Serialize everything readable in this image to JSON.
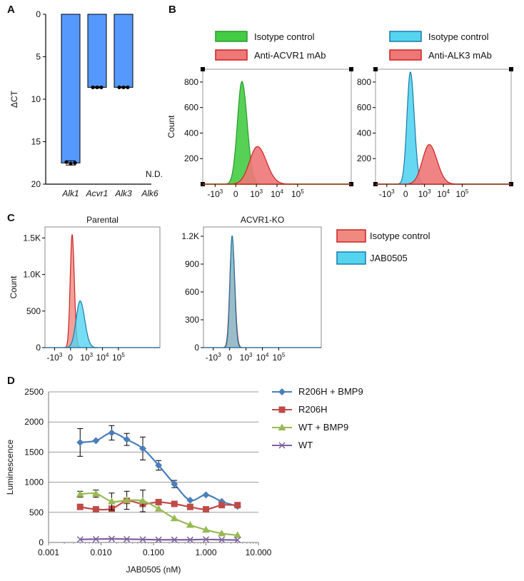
{
  "panels": {
    "a": "A",
    "b": "B",
    "c": "C",
    "d": "D"
  },
  "chart_data": [
    {
      "id": "A",
      "type": "bar",
      "ylabel": "ΔCT",
      "ylim": [
        0,
        20
      ],
      "y_inverted": true,
      "yticks": [
        "0",
        "5",
        "10",
        "15",
        "20"
      ],
      "categories": [
        "Alk1",
        "Acvr1",
        "Alk3",
        "Alk6"
      ],
      "values": [
        17.5,
        8.6,
        8.6,
        null
      ],
      "errors": [
        0.25,
        0.08,
        0.06,
        null
      ],
      "replicates": [
        [
          17.4,
          17.6,
          17.5
        ],
        [
          8.6,
          8.6,
          8.6
        ],
        [
          8.6,
          8.6,
          8.6
        ],
        []
      ],
      "na_label": "N.D.",
      "bar_color": "#5599ff"
    },
    {
      "id": "B",
      "type": "area",
      "subplots": [
        {
          "ylabel": "Count",
          "yticks": [
            "200",
            "400",
            "600",
            "800"
          ],
          "xticks": [
            "-10",
            "0",
            "10",
            "10",
            "10"
          ],
          "xtick_exp": [
            "3",
            "",
            "3",
            "4",
            "5"
          ],
          "legend": [
            {
              "label": "Isotype control",
              "fill": "#44cc44",
              "stroke": "#2a9a2a"
            },
            {
              "label": "Anti-ACVR1 mAb",
              "fill": "#ee7777",
              "stroke": "#cc2222"
            }
          ],
          "series": [
            {
              "name": "Isotype control",
              "center": 0.3,
              "peak": 805,
              "width": 0.22
            },
            {
              "name": "Anti-ACVR1 mAb",
              "center": 1.05,
              "peak": 295,
              "width": 0.38
            }
          ]
        },
        {
          "ylabel": "",
          "yticks": [
            "200",
            "400",
            "600",
            "800"
          ],
          "xticks": [
            "-10",
            "0",
            "10",
            "10",
            "10"
          ],
          "xtick_exp": [
            "3",
            "",
            "3",
            "4",
            "5"
          ],
          "legend": [
            {
              "label": "Isotype control",
              "fill": "#55d4f0",
              "stroke": "#1a7aa8"
            },
            {
              "label": "Anti-ALK3 mAb",
              "fill": "#ee7777",
              "stroke": "#cc2222"
            }
          ],
          "series": [
            {
              "name": "Isotype control",
              "center": 0.25,
              "peak": 880,
              "width": 0.18
            },
            {
              "name": "Anti-ALK3 mAb",
              "center": 1.25,
              "peak": 310,
              "width": 0.36
            }
          ]
        }
      ]
    },
    {
      "id": "C",
      "type": "area",
      "legend": [
        {
          "label": "Isotype control",
          "fill": "#ee8a80",
          "stroke": "#cc2222"
        },
        {
          "label": "JAB0505",
          "fill": "#55d4f0",
          "stroke": "#1a7aa8"
        }
      ],
      "subplots": [
        {
          "title": "Parental",
          "ylabel": "Count",
          "yticks": [
            "0",
            "500",
            "1.0K",
            "1.5K"
          ],
          "ymax": 1650,
          "tickvals": [
            0,
            500,
            1000,
            1500
          ],
          "xticks": [
            "-10",
            "0",
            "10",
            "10",
            "10"
          ],
          "xtick_exp": [
            "3",
            "",
            "3",
            "4",
            "5"
          ],
          "series": [
            {
              "name": "Isotype control",
              "center": 0.1,
              "peak": 1550,
              "width": 0.12
            },
            {
              "name": "JAB0505",
              "center": 0.6,
              "peak": 640,
              "width": 0.25
            }
          ]
        },
        {
          "title": "ACVR1-KO",
          "ylabel": "",
          "yticks": [
            "0",
            "300",
            "600",
            "900",
            "1.2K"
          ],
          "ymax": 1300,
          "tickvals": [
            0,
            300,
            600,
            900,
            1200
          ],
          "xticks": [
            "-10",
            "0",
            "10",
            "10",
            "10"
          ],
          "xtick_exp": [
            "3",
            "",
            "3",
            "4",
            "5"
          ],
          "series": [
            {
              "name": "Isotype control",
              "center": 0.15,
              "peak": 1190,
              "width": 0.14
            },
            {
              "name": "JAB0505",
              "center": 0.15,
              "peak": 1210,
              "width": 0.13
            }
          ]
        }
      ]
    },
    {
      "id": "D",
      "type": "line",
      "xlabel": "JAB0505 (nM)",
      "ylabel": "Luminescence",
      "xscale": "log",
      "xlim": [
        0.001,
        10
      ],
      "ylim": [
        0,
        2500
      ],
      "xticks": [
        "0.001",
        "0.010",
        "0.100",
        "1.000",
        "10.000"
      ],
      "yticks": [
        "0",
        "500",
        "1000",
        "1500",
        "2000",
        "2500"
      ],
      "x": [
        0.004,
        0.008,
        0.016,
        0.031,
        0.0625,
        0.125,
        0.25,
        0.5,
        1,
        2,
        4
      ],
      "series": [
        {
          "name": "R206H + BMP9",
          "color": "#4a7ebb",
          "marker": "diamond",
          "values": [
            1660,
            1690,
            1820,
            1710,
            1560,
            1280,
            970,
            700,
            790,
            680,
            600
          ],
          "errors": [
            230,
            0,
            120,
            100,
            190,
            80,
            60,
            0,
            0,
            0,
            0
          ]
        },
        {
          "name": "R206H",
          "color": "#be4b48",
          "marker": "square",
          "values": [
            590,
            550,
            560,
            690,
            640,
            670,
            640,
            590,
            550,
            620,
            620
          ],
          "errors": [
            0,
            0,
            0,
            0,
            0,
            0,
            0,
            0,
            0,
            0,
            0
          ]
        },
        {
          "name": "WT + BMP9",
          "color": "#98b954",
          "marker": "triangle",
          "values": [
            800,
            810,
            680,
            700,
            690,
            560,
            400,
            290,
            210,
            150,
            120
          ],
          "errors": [
            50,
            60,
            140,
            150,
            180,
            0,
            0,
            0,
            0,
            0,
            0
          ]
        },
        {
          "name": "WT",
          "color": "#7d60a0",
          "marker": "x",
          "values": [
            50,
            55,
            60,
            55,
            50,
            45,
            45,
            45,
            50,
            45,
            40
          ],
          "errors": [
            0,
            0,
            0,
            0,
            0,
            0,
            0,
            0,
            0,
            0,
            0
          ]
        }
      ]
    }
  ]
}
